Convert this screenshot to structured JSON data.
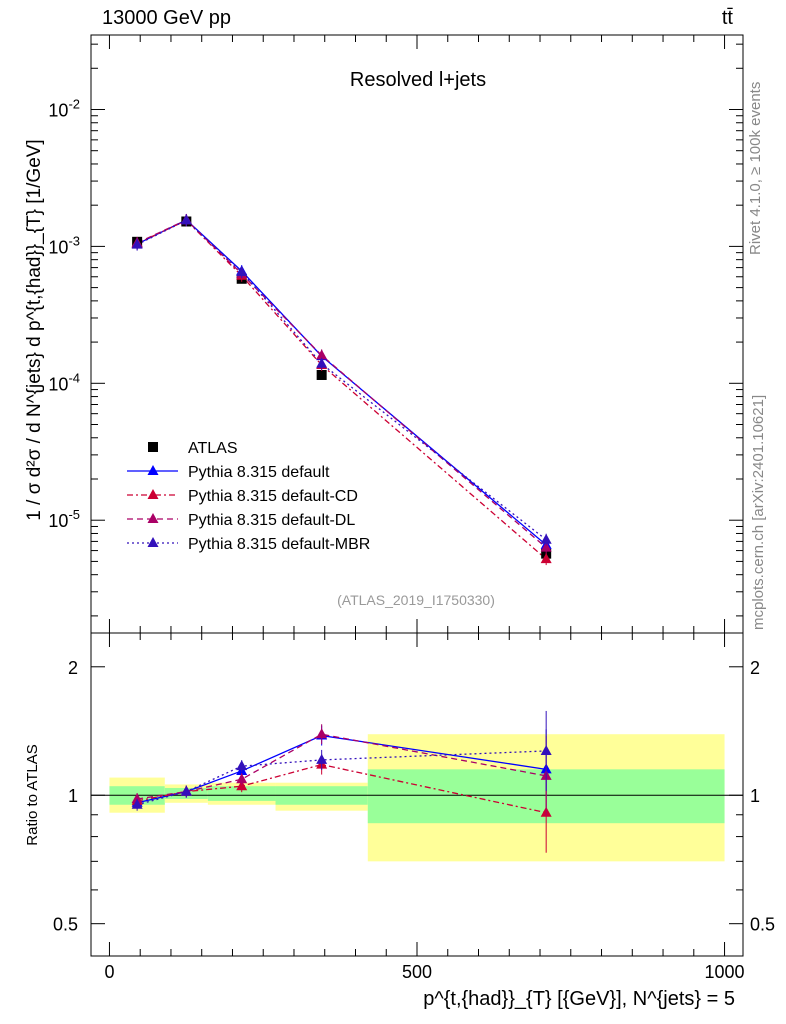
{
  "header": {
    "energy_label": "13000 GeV pp",
    "process_label": "tt̄",
    "rivet_label": "Rivet 4.1.0, ≥ 100k events",
    "site_label": "mcplots.cern.ch [arXiv:2401.10621]"
  },
  "main_plot": {
    "title": "Resolved l+jets",
    "ylabel": "1 / σ d²σ / d N^{jets} d p^{t,{had}}_{T} [1/GeV]",
    "analysis_id": "(ATLAS_2019_I1750330)",
    "ytick_labels": [
      "10^-5",
      "10^-4",
      "10^-3",
      "10^-2"
    ]
  },
  "ratio_plot": {
    "ylabel": "Ratio to ATLAS",
    "ytick_labels": [
      "0.5",
      "1",
      "2"
    ],
    "ytick_labels_right": [
      "0.5",
      "1",
      "2"
    ]
  },
  "xaxis": {
    "label": "p^{t,{had}}_{T} [{GeV}], N^{jets} = 5",
    "tick_labels": [
      "0",
      "500",
      "1000"
    ]
  },
  "legend": [
    {
      "label": "ATLAS"
    },
    {
      "label": "Pythia 8.315 default"
    },
    {
      "label": "Pythia 8.315 default-CD"
    },
    {
      "label": "Pythia 8.315 default-DL"
    },
    {
      "label": "Pythia 8.315 default-MBR"
    }
  ],
  "chart_data": [
    {
      "type": "scatter",
      "title": "Resolved l+jets",
      "xlabel": "p^{t,{had}}_{T} [{GeV}], N^{jets} = 5",
      "ylabel": "1 / σ d²σ / d N^{jets} d p^{t,{had}}_{T} [1/GeV]",
      "xlim": [
        -30,
        1030
      ],
      "ylim": [
        1.5e-06,
        0.035
      ],
      "yscale": "log",
      "x": [
        45,
        125,
        215,
        345,
        710
      ],
      "bins": [
        [
          0,
          90
        ],
        [
          90,
          160
        ],
        [
          160,
          270
        ],
        [
          270,
          420
        ],
        [
          420,
          1000
        ]
      ],
      "series": [
        {
          "name": "ATLAS",
          "color": "#000000",
          "marker": "square",
          "values": [
            0.00108,
            0.00152,
            0.00058,
            0.000115,
            5.7e-06
          ]
        },
        {
          "name": "Pythia 8.315 default",
          "color": "#0000ff",
          "style": "solid",
          "marker": "triangle",
          "values": [
            0.00104,
            0.00156,
            0.00066,
            0.000158,
            6.6e-06
          ]
        },
        {
          "name": "Pythia 8.315 default-CD",
          "color": "#cc0033",
          "style": "dashdot",
          "marker": "triangle",
          "values": [
            0.00105,
            0.00155,
            0.00061,
            0.000136,
            5.2e-06
          ]
        },
        {
          "name": "Pythia 8.315 default-DL",
          "color": "#aa0066",
          "style": "dashed",
          "marker": "triangle",
          "values": [
            0.00106,
            0.00156,
            0.00063,
            0.00016,
            6.3e-06
          ]
        },
        {
          "name": "Pythia 8.315 default-MBR",
          "color": "#3311bb",
          "style": "dotted",
          "marker": "triangle",
          "values": [
            0.00103,
            0.00155,
            0.00065,
            0.000139,
            7.2e-06
          ]
        }
      ]
    },
    {
      "type": "scatter",
      "title": "",
      "ylabel": "Ratio to ATLAS",
      "xlim": [
        -30,
        1030
      ],
      "ylim": [
        0.42,
        2.4
      ],
      "yscale": "log",
      "x": [
        45,
        125,
        215,
        345,
        710
      ],
      "bands": {
        "bins": [
          [
            0,
            90
          ],
          [
            90,
            160
          ],
          [
            160,
            270
          ],
          [
            270,
            420
          ],
          [
            420,
            1000
          ]
        ],
        "green": [
          [
            0.95,
            1.05
          ],
          [
            0.98,
            1.04
          ],
          [
            0.97,
            1.05
          ],
          [
            0.95,
            1.05
          ],
          [
            0.86,
            1.15
          ]
        ],
        "yellow": [
          [
            0.91,
            1.1
          ],
          [
            0.96,
            1.06
          ],
          [
            0.95,
            1.07
          ],
          [
            0.92,
            1.07
          ],
          [
            0.7,
            1.39
          ]
        ]
      },
      "series": [
        {
          "name": "Pythia 8.315 default",
          "color": "#0000ff",
          "values": [
            0.96,
            1.02,
            1.14,
            1.38,
            1.15
          ]
        },
        {
          "name": "Pythia 8.315 default-CD",
          "color": "#cc0033",
          "values": [
            0.97,
            1.02,
            1.05,
            1.18,
            0.91
          ]
        },
        {
          "name": "Pythia 8.315 default-DL",
          "color": "#aa0066",
          "values": [
            0.98,
            1.02,
            1.09,
            1.39,
            1.11
          ]
        },
        {
          "name": "Pythia 8.315 default-MBR",
          "color": "#3311bb",
          "values": [
            0.95,
            1.02,
            1.17,
            1.21,
            1.27
          ]
        }
      ]
    }
  ]
}
